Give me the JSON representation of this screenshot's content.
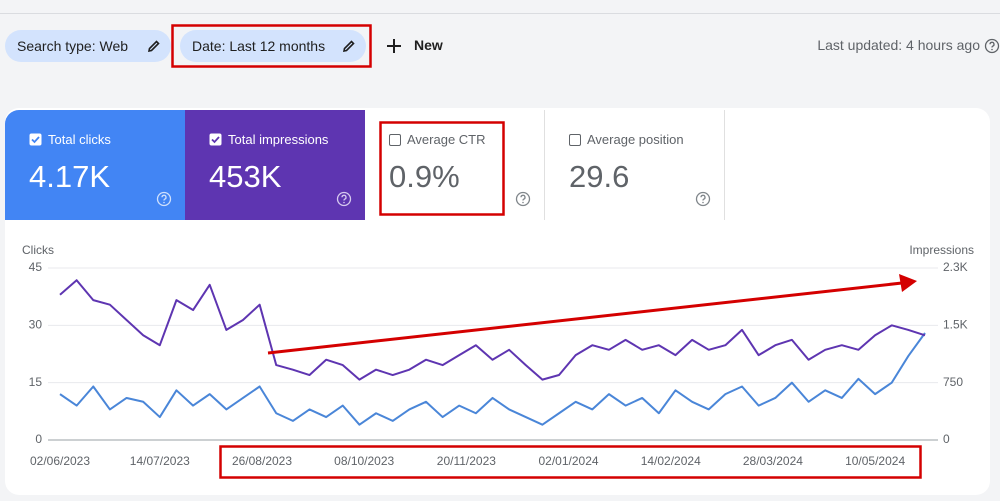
{
  "toolbar": {
    "search_type_chip": "Search type: Web",
    "date_chip": "Date: Last 12 months",
    "new_button": "New",
    "last_updated": "Last updated: 4 hours ago"
  },
  "metrics": [
    {
      "label": "Total clicks",
      "value": "4.17K"
    },
    {
      "label": "Total impressions",
      "value": "453K"
    },
    {
      "label": "Average CTR",
      "value": "0.9%"
    },
    {
      "label": "Average position",
      "value": "29.6"
    }
  ],
  "chart_data": {
    "type": "line",
    "y_label": "Clicks",
    "y2_label": "Impressions",
    "x": [
      "02/06/2023",
      "09/06/2023",
      "16/06/2023",
      "23/06/2023",
      "30/06/2023",
      "07/07/2023",
      "14/07/2023",
      "21/07/2023",
      "28/07/2023",
      "04/08/2023",
      "11/08/2023",
      "18/08/2023",
      "25/08/2023",
      "01/09/2023",
      "08/09/2023",
      "15/09/2023",
      "22/09/2023",
      "29/09/2023",
      "06/10/2023",
      "13/10/2023",
      "20/10/2023",
      "27/10/2023",
      "03/11/2023",
      "10/11/2023",
      "17/11/2023",
      "24/11/2023",
      "01/12/2023",
      "08/12/2023",
      "15/12/2023",
      "22/12/2023",
      "29/12/2023",
      "05/01/2024",
      "12/01/2024",
      "19/01/2024",
      "26/01/2024",
      "02/02/2024",
      "09/02/2024",
      "16/02/2024",
      "23/02/2024",
      "01/03/2024",
      "08/03/2024",
      "15/03/2024",
      "22/03/2024",
      "29/03/2024",
      "05/04/2024",
      "12/04/2024",
      "19/04/2024",
      "26/04/2024",
      "03/05/2024",
      "10/05/2024",
      "17/05/2024",
      "24/05/2024",
      "31/05/2024"
    ],
    "series": [
      {
        "name": "Clicks",
        "color": "#4a86d8",
        "values": [
          12,
          9,
          14,
          8,
          11,
          10,
          6,
          13,
          9,
          12,
          8,
          11,
          14,
          7,
          5,
          8,
          6,
          9,
          4,
          7,
          5,
          8,
          10,
          6,
          9,
          7,
          11,
          8,
          6,
          4,
          7,
          10,
          8,
          12,
          9,
          11,
          7,
          13,
          10,
          8,
          12,
          14,
          9,
          11,
          15,
          10,
          13,
          11,
          16,
          12,
          15,
          22,
          28
        ]
      },
      {
        "name": "Impressions",
        "color": "#5e35b1",
        "axis": "y2",
        "values": [
          1900,
          2090,
          1830,
          1770,
          1570,
          1370,
          1240,
          1830,
          1700,
          2030,
          1440,
          1570,
          1770,
          980,
          920,
          850,
          1050,
          980,
          790,
          920,
          850,
          920,
          1050,
          980,
          1110,
          1240,
          1050,
          1180,
          980,
          790,
          850,
          1110,
          1240,
          1180,
          1310,
          1180,
          1240,
          1110,
          1310,
          1180,
          1240,
          1440,
          1110,
          1240,
          1310,
          1050,
          1180,
          1240,
          1180,
          1370,
          1500,
          1440,
          1370
        ]
      }
    ],
    "xlim": [
      "02/06/2023",
      "31/05/2024"
    ],
    "xticks": [
      "02/06/2023",
      "14/07/2023",
      "26/08/2023",
      "08/10/2023",
      "20/11/2023",
      "02/01/2024",
      "14/02/2024",
      "28/03/2024",
      "10/05/2024"
    ],
    "ylim": [
      0,
      45
    ],
    "yticks": [
      0,
      15,
      30,
      45
    ],
    "y2lim": [
      0,
      2250
    ],
    "y2ticks": [
      0,
      750,
      {
        "value": 1500,
        "label": "1.5K"
      },
      {
        "value": 2250,
        "label": "2.3K"
      }
    ],
    "grid": true
  }
}
